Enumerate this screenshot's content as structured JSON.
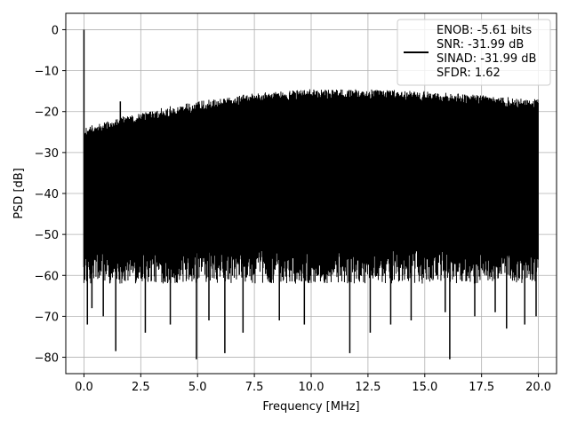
{
  "chart_data": {
    "type": "line",
    "title": "",
    "xlabel": "Frequency [MHz]",
    "ylabel": "PSD [dB]",
    "xlim": [
      -0.8,
      20.8
    ],
    "ylim": [
      -84,
      4
    ],
    "xticks": [
      0.0,
      2.5,
      5.0,
      7.5,
      10.0,
      12.5,
      15.0,
      17.5,
      20.0
    ],
    "xtick_labels": [
      "0.0",
      "2.5",
      "5.0",
      "7.5",
      "10.0",
      "12.5",
      "15.0",
      "17.5",
      "20.0"
    ],
    "yticks": [
      0,
      -10,
      -20,
      -30,
      -40,
      -50,
      -60,
      -70,
      -80
    ],
    "ytick_labels": [
      "0",
      "−10",
      "−20",
      "−30",
      "−40",
      "−50",
      "−60",
      "−70",
      "−80"
    ],
    "grid": true,
    "legend_position": "top-right",
    "series": [
      {
        "name": "ENOB: -5.61 bits\nSNR: -31.99 dB\nSINAD: -31.99 dB\nSFDR: 1.62",
        "legend_lines": [
          "ENOB: -5.61 bits",
          "SNR: -31.99 dB",
          "SINAD: -31.99 dB",
          "SFDR: 1.62"
        ],
        "color": "#000000",
        "noise_upper_envelope": {
          "x": [
            0.05,
            0.5,
            2.5,
            5.0,
            7.5,
            10.0,
            12.5,
            15.0,
            17.5,
            20.0
          ],
          "y": [
            -24,
            -23,
            -20,
            -17.5,
            -15.5,
            -14.5,
            -14.5,
            -15,
            -16,
            -17
          ]
        },
        "noise_lower_typical": -58,
        "peaks": [
          {
            "x": 0.0,
            "y": 0
          },
          {
            "x": 1.6,
            "y": -17.5
          }
        ],
        "deep_minima": [
          {
            "x": 0.15,
            "y": -72
          },
          {
            "x": 0.35,
            "y": -68
          },
          {
            "x": 0.85,
            "y": -70
          },
          {
            "x": 1.4,
            "y": -78.5
          },
          {
            "x": 2.7,
            "y": -74
          },
          {
            "x": 3.8,
            "y": -72
          },
          {
            "x": 4.95,
            "y": -80.5
          },
          {
            "x": 5.5,
            "y": -71
          },
          {
            "x": 6.2,
            "y": -79
          },
          {
            "x": 7.0,
            "y": -74
          },
          {
            "x": 8.6,
            "y": -71
          },
          {
            "x": 9.7,
            "y": -72
          },
          {
            "x": 11.7,
            "y": -79
          },
          {
            "x": 12.6,
            "y": -74
          },
          {
            "x": 13.5,
            "y": -72
          },
          {
            "x": 14.4,
            "y": -71
          },
          {
            "x": 15.9,
            "y": -69
          },
          {
            "x": 16.1,
            "y": -80.5
          },
          {
            "x": 17.2,
            "y": -70
          },
          {
            "x": 18.1,
            "y": -69
          },
          {
            "x": 18.6,
            "y": -73
          },
          {
            "x": 19.4,
            "y": -72
          },
          {
            "x": 19.9,
            "y": -70
          }
        ]
      }
    ]
  }
}
